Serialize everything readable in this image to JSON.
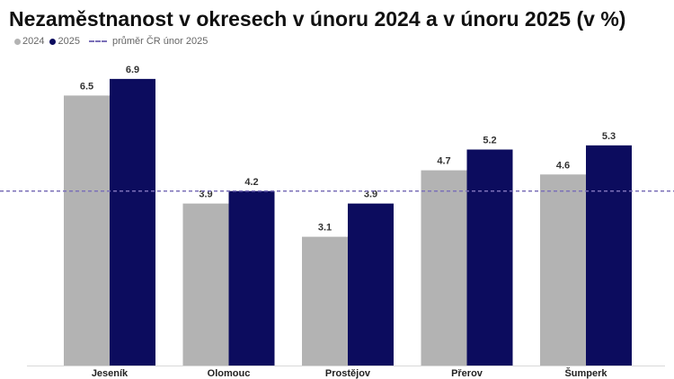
{
  "chart_data": {
    "type": "bar",
    "title": "Nezaměstnanost v okresech v únoru 2024 a v únoru 2025 (v %)",
    "categories": [
      "Jeseník",
      "Olomouc",
      "Prostějov",
      "Přerov",
      "Šumperk"
    ],
    "series": [
      {
        "name": "2024",
        "values": [
          6.5,
          3.9,
          3.1,
          4.7,
          4.6
        ],
        "color": "#b3b3b3"
      },
      {
        "name": "2025",
        "values": [
          6.9,
          4.2,
          3.9,
          5.2,
          5.3
        ],
        "color": "#0c0c5e"
      }
    ],
    "reference_line": {
      "label": "průměr ČR únor 2025",
      "value": 4.2,
      "color": "#7b70b8",
      "style": "dashed"
    },
    "ylim": [
      0,
      7.2
    ],
    "grid": false,
    "legend_position": "top-left",
    "xlabel": "",
    "ylabel": ""
  }
}
